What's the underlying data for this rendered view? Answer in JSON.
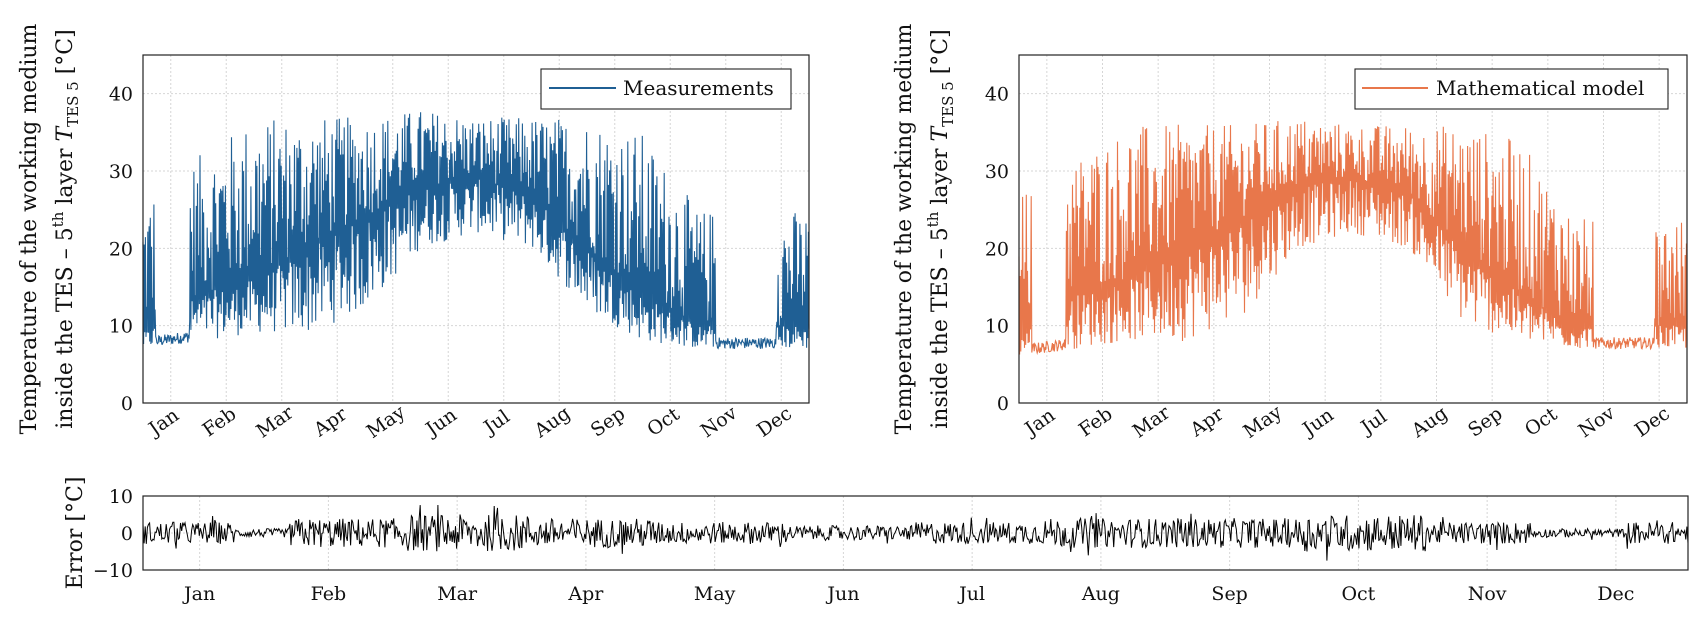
{
  "months": [
    "Jan",
    "Feb",
    "Mar",
    "Apr",
    "May",
    "Jun",
    "Jul",
    "Aug",
    "Sep",
    "Oct",
    "Nov",
    "Dec"
  ],
  "panels": {
    "measurements": {
      "ylabel_line1": "Temperature of the working medium",
      "ylabel_line2_prefix": "inside the TES – 5",
      "ylabel_line2_sup": "th",
      "ylabel_line2_mid": " layer ",
      "ylabel_line2_var": "T",
      "ylabel_line2_sub": "TES 5",
      "ylabel_line2_unit": " [°C]",
      "legend": "Measurements",
      "color": "#1f5f94"
    },
    "model": {
      "ylabel_line1": "Temperature of the working medium",
      "ylabel_line2_prefix": "inside the TES – 5",
      "ylabel_line2_sup": "th",
      "ylabel_line2_mid": " layer ",
      "ylabel_line2_var": "T",
      "ylabel_line2_sub": "TES 5",
      "ylabel_line2_unit": " [°C]",
      "legend": "Mathematical model",
      "color": "#e8774b"
    },
    "error": {
      "ylabel": "Error [°C]",
      "color": "#000000"
    }
  },
  "chart_data": [
    {
      "type": "line",
      "title": "",
      "series": [
        {
          "name": "Measurements",
          "monthly_min": [
            7,
            8,
            9,
            9,
            12,
            20,
            22,
            20,
            12,
            8,
            7,
            7
          ],
          "monthly_max": [
            27,
            32,
            37,
            37,
            37,
            38,
            37,
            37,
            37,
            35,
            25,
            25
          ],
          "monthly_median": [
            9,
            14,
            16,
            20,
            24,
            28,
            29,
            27,
            20,
            14,
            10,
            10
          ]
        }
      ],
      "xlabel": "",
      "ylabel": "Temperature of the working medium inside the TES – 5th layer T_TES 5 [°C]",
      "ylim": [
        0,
        45
      ],
      "yticks": [
        0,
        10,
        20,
        30,
        40
      ],
      "xticks": [
        "Jan",
        "Feb",
        "Mar",
        "Apr",
        "May",
        "Jun",
        "Jul",
        "Aug",
        "Sep",
        "Oct",
        "Nov",
        "Dec"
      ],
      "grid": true,
      "legend_position": "top-right"
    },
    {
      "type": "line",
      "title": "",
      "series": [
        {
          "name": "Mathematical model",
          "monthly_min": [
            6,
            7,
            8,
            8,
            11,
            20,
            22,
            20,
            10,
            8,
            7,
            7
          ],
          "monthly_max": [
            27,
            32,
            36,
            36,
            36,
            37,
            36,
            36,
            36,
            34,
            24,
            24
          ],
          "monthly_median": [
            9,
            14,
            16,
            20,
            24,
            28,
            29,
            27,
            20,
            14,
            10,
            10
          ]
        }
      ],
      "xlabel": "",
      "ylabel": "Temperature of the working medium inside the TES – 5th layer T_TES 5 [°C]",
      "ylim": [
        0,
        45
      ],
      "yticks": [
        0,
        10,
        20,
        30,
        40
      ],
      "xticks": [
        "Jan",
        "Feb",
        "Mar",
        "Apr",
        "May",
        "Jun",
        "Jul",
        "Aug",
        "Sep",
        "Oct",
        "Nov",
        "Dec"
      ],
      "grid": true,
      "legend_position": "top-right"
    },
    {
      "type": "line",
      "title": "",
      "series": [
        {
          "name": "Error",
          "monthly_amplitude": [
            3,
            4,
            5,
            4,
            3,
            2,
            3,
            4,
            4,
            5,
            3,
            3
          ]
        }
      ],
      "xlabel": "",
      "ylabel": "Error [°C]",
      "ylim": [
        -10,
        10
      ],
      "yticks": [
        -10,
        0,
        10
      ],
      "xticks": [
        "Jan",
        "Feb",
        "Mar",
        "Apr",
        "May",
        "Jun",
        "Jul",
        "Aug",
        "Sep",
        "Oct",
        "Nov",
        "Dec"
      ],
      "grid": true
    }
  ]
}
